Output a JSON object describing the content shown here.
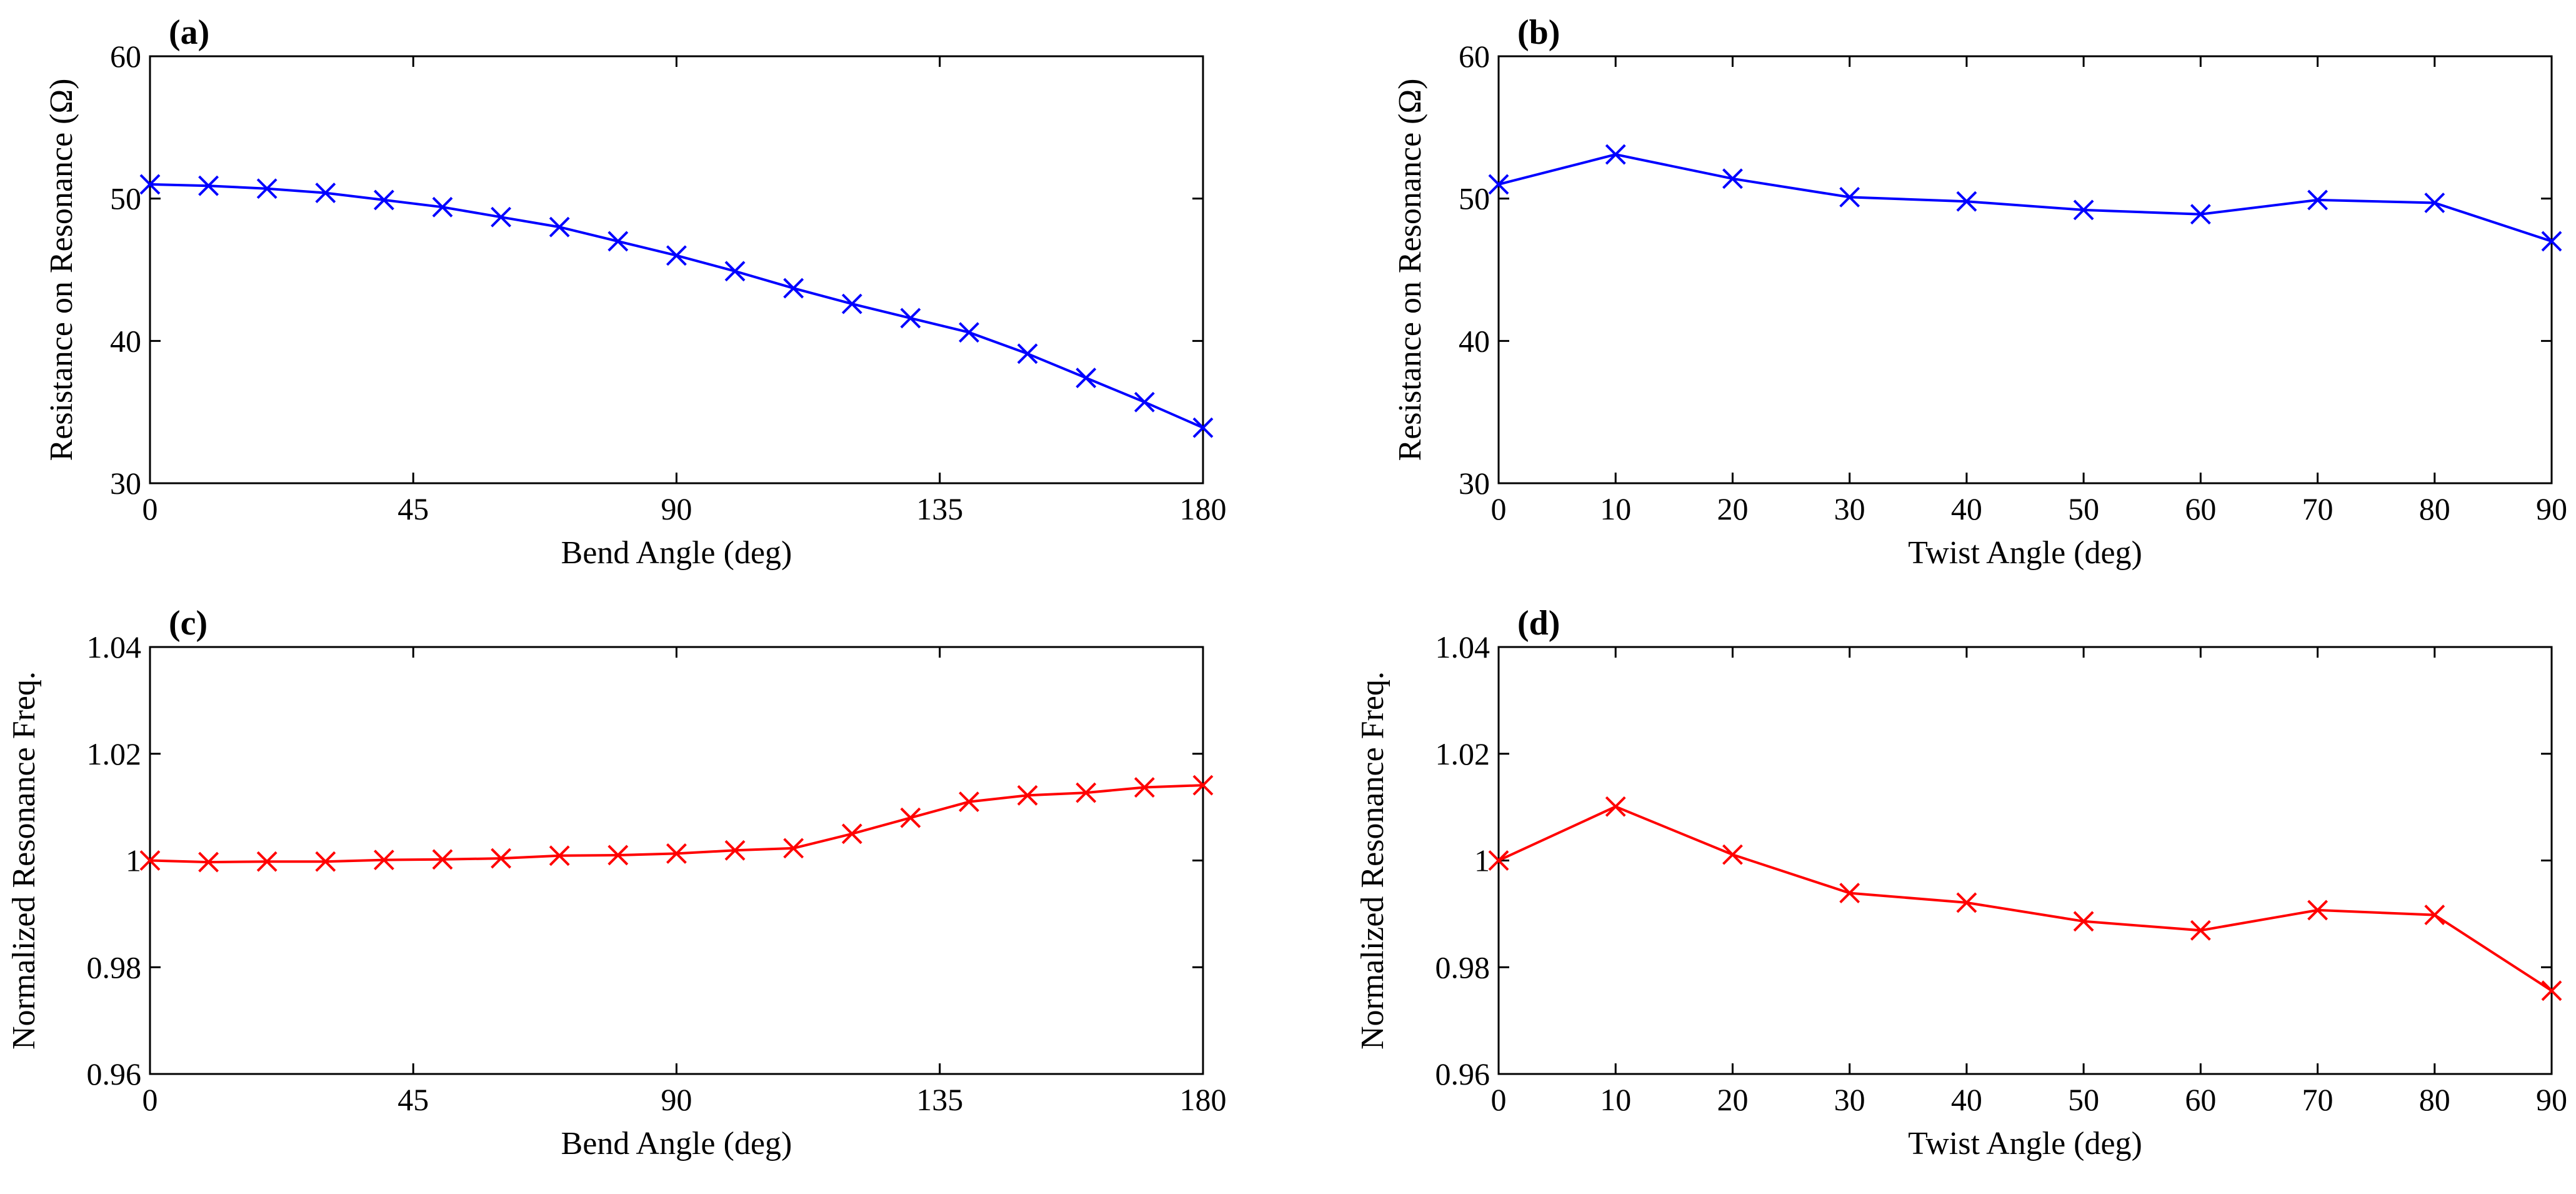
{
  "chart_data": [
    {
      "type": "line",
      "panel_label": "(a)",
      "xlabel": "Bend Angle (deg)",
      "ylabel": "Resistance on Resonance (Ω)",
      "xlim": [
        0,
        180
      ],
      "ylim": [
        30,
        60
      ],
      "xticks": [
        0,
        45,
        90,
        135,
        180
      ],
      "yticks": [
        30,
        40,
        50,
        60
      ],
      "ytick_decimals": 0,
      "color": "#0000ff",
      "marker": "x",
      "x": [
        0,
        10,
        20,
        30,
        40,
        50,
        60,
        70,
        80,
        90,
        100,
        110,
        120,
        130,
        140,
        150,
        160,
        170,
        180
      ],
      "y": [
        51.0,
        50.9,
        50.7,
        50.4,
        49.9,
        49.4,
        48.7,
        48.0,
        47.0,
        46.0,
        44.9,
        43.7,
        42.6,
        41.6,
        40.6,
        39.1,
        37.4,
        35.7,
        33.9
      ]
    },
    {
      "type": "line",
      "panel_label": "(b)",
      "xlabel": "Twist Angle (deg)",
      "ylabel": "Resistance on Resonance (Ω)",
      "xlim": [
        0,
        90
      ],
      "ylim": [
        30,
        60
      ],
      "xticks": [
        0,
        10,
        20,
        30,
        40,
        50,
        60,
        70,
        80,
        90
      ],
      "yticks": [
        30,
        40,
        50,
        60
      ],
      "ytick_decimals": 0,
      "color": "#0000ff",
      "marker": "x",
      "x": [
        0,
        10,
        20,
        30,
        40,
        50,
        60,
        70,
        80,
        90
      ],
      "y": [
        51.0,
        53.1,
        51.4,
        50.1,
        49.8,
        49.2,
        48.9,
        49.9,
        49.7,
        47.0
      ]
    },
    {
      "type": "line",
      "panel_label": "(c)",
      "xlabel": "Bend Angle (deg)",
      "ylabel": "Normalized Resonance Freq.",
      "xlim": [
        0,
        180
      ],
      "ylim": [
        0.96,
        1.04
      ],
      "xticks": [
        0,
        45,
        90,
        135,
        180
      ],
      "yticks": [
        0.96,
        0.98,
        1,
        1.02,
        1.04
      ],
      "ytick_decimals": 2,
      "color": "#ff0000",
      "marker": "x",
      "x": [
        0,
        10,
        20,
        30,
        40,
        50,
        60,
        70,
        80,
        90,
        100,
        110,
        120,
        130,
        140,
        150,
        160,
        170,
        180
      ],
      "y": [
        1.0,
        0.9997,
        0.9998,
        0.9998,
        1.0001,
        1.0002,
        1.0004,
        1.0009,
        1.001,
        1.0013,
        1.0019,
        1.0023,
        1.005,
        1.008,
        1.011,
        1.0122,
        1.0127,
        1.0137,
        1.0141
      ]
    },
    {
      "type": "line",
      "panel_label": "(d)",
      "xlabel": "Twist Angle (deg)",
      "ylabel": "Normalized Resonance Freq.",
      "xlim": [
        0,
        90
      ],
      "ylim": [
        0.96,
        1.04
      ],
      "xticks": [
        0,
        10,
        20,
        30,
        40,
        50,
        60,
        70,
        80,
        90
      ],
      "yticks": [
        0.96,
        0.98,
        1,
        1.02,
        1.04
      ],
      "ytick_decimals": 2,
      "color": "#ff0000",
      "marker": "x",
      "x": [
        0,
        10,
        20,
        30,
        40,
        50,
        60,
        70,
        80,
        90
      ],
      "y": [
        1.0,
        1.0101,
        1.0011,
        0.9939,
        0.9921,
        0.9886,
        0.9869,
        0.9907,
        0.9898,
        0.9756
      ]
    }
  ]
}
